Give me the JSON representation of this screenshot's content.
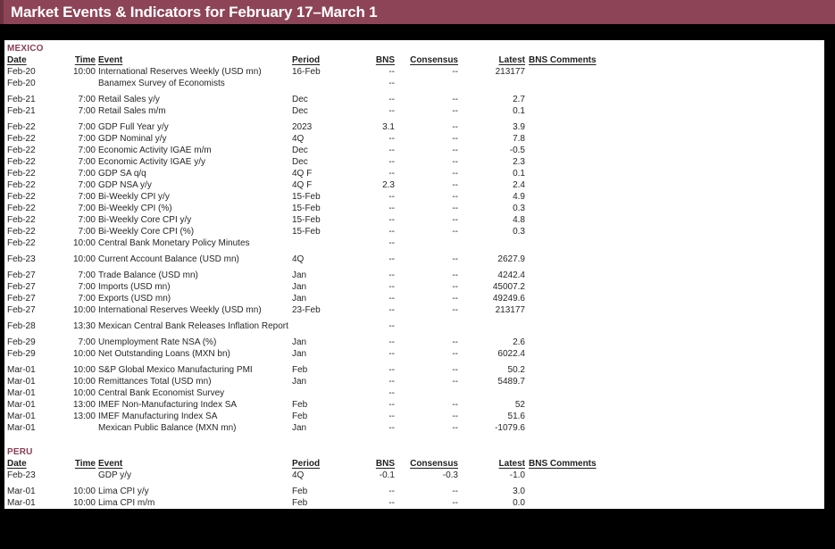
{
  "title": "Market Events & Indicators for February 17–March 1",
  "colors": {
    "title_bar_bg": "#8E4457",
    "title_bar_accent": "#6D3342",
    "section_label": "#8A3E54",
    "page_bg": "#000000",
    "table_bg": "#FFFFFF",
    "text": "#262626"
  },
  "columns": {
    "date": "Date",
    "time": "Time",
    "event": "Event",
    "period": "Period",
    "bns": "BNS",
    "consensus": "Consensus",
    "latest": "Latest",
    "comments": "BNS Comments"
  },
  "sections": [
    {
      "name": "MEXICO",
      "rows": [
        {
          "date": "Feb-20",
          "time": "10:00",
          "event": "International Reserves Weekly (USD mn)",
          "period": "16-Feb",
          "bns": "--",
          "consensus": "--",
          "latest": "213177",
          "comments": ""
        },
        {
          "date": "Feb-20",
          "time": "",
          "event": "Banamex Survey of Economists",
          "period": "",
          "bns": "--",
          "consensus": "",
          "latest": "",
          "comments": ""
        },
        {
          "date": "Feb-21",
          "time": "7:00",
          "event": "Retail Sales y/y",
          "period": "Dec",
          "bns": "--",
          "consensus": "--",
          "latest": "2.7",
          "comments": ""
        },
        {
          "date": "Feb-21",
          "time": "7:00",
          "event": "Retail Sales m/m",
          "period": "Dec",
          "bns": "--",
          "consensus": "--",
          "latest": "0.1",
          "comments": ""
        },
        {
          "date": "Feb-22",
          "time": "7:00",
          "event": "GDP Full Year y/y",
          "period": "2023",
          "bns": "3.1",
          "consensus": "--",
          "latest": "3.9",
          "comments": ""
        },
        {
          "date": "Feb-22",
          "time": "7:00",
          "event": "GDP Nominal y/y",
          "period": "4Q",
          "bns": "--",
          "consensus": "--",
          "latest": "7.8",
          "comments": ""
        },
        {
          "date": "Feb-22",
          "time": "7:00",
          "event": "Economic Activity IGAE m/m",
          "period": "Dec",
          "bns": "--",
          "consensus": "--",
          "latest": "-0.5",
          "comments": ""
        },
        {
          "date": "Feb-22",
          "time": "7:00",
          "event": "Economic Activity IGAE y/y",
          "period": "Dec",
          "bns": "--",
          "consensus": "--",
          "latest": "2.3",
          "comments": ""
        },
        {
          "date": "Feb-22",
          "time": "7:00",
          "event": "GDP SA q/q",
          "period": "4Q F",
          "bns": "--",
          "consensus": "--",
          "latest": "0.1",
          "comments": ""
        },
        {
          "date": "Feb-22",
          "time": "7:00",
          "event": "GDP NSA y/y",
          "period": "4Q F",
          "bns": "2.3",
          "consensus": "--",
          "latest": "2.4",
          "comments": ""
        },
        {
          "date": "Feb-22",
          "time": "7:00",
          "event": "Bi-Weekly CPI y/y",
          "period": "15-Feb",
          "bns": "--",
          "consensus": "--",
          "latest": "4.9",
          "comments": ""
        },
        {
          "date": "Feb-22",
          "time": "7:00",
          "event": "Bi-Weekly CPI (%)",
          "period": "15-Feb",
          "bns": "--",
          "consensus": "--",
          "latest": "0.3",
          "comments": ""
        },
        {
          "date": "Feb-22",
          "time": "7:00",
          "event": "Bi-Weekly Core CPI y/y",
          "period": "15-Feb",
          "bns": "--",
          "consensus": "--",
          "latest": "4.8",
          "comments": ""
        },
        {
          "date": "Feb-22",
          "time": "7:00",
          "event": "Bi-Weekly Core CPI (%)",
          "period": "15-Feb",
          "bns": "--",
          "consensus": "--",
          "latest": "0.3",
          "comments": ""
        },
        {
          "date": "Feb-22",
          "time": "10:00",
          "event": "Central Bank Monetary Policy Minutes",
          "period": "",
          "bns": "--",
          "consensus": "",
          "latest": "",
          "comments": ""
        },
        {
          "date": "Feb-23",
          "time": "10:00",
          "event": "Current Account Balance (USD mn)",
          "period": "4Q",
          "bns": "--",
          "consensus": "--",
          "latest": "2627.9",
          "comments": ""
        },
        {
          "date": "Feb-27",
          "time": "7:00",
          "event": "Trade Balance (USD mn)",
          "period": "Jan",
          "bns": "--",
          "consensus": "--",
          "latest": "4242.4",
          "comments": ""
        },
        {
          "date": "Feb-27",
          "time": "7:00",
          "event": "Imports (USD mn)",
          "period": "Jan",
          "bns": "--",
          "consensus": "--",
          "latest": "45007.2",
          "comments": ""
        },
        {
          "date": "Feb-27",
          "time": "7:00",
          "event": "Exports (USD mn)",
          "period": "Jan",
          "bns": "--",
          "consensus": "--",
          "latest": "49249.6",
          "comments": ""
        },
        {
          "date": "Feb-27",
          "time": "10:00",
          "event": "International Reserves Weekly (USD mn)",
          "period": "23-Feb",
          "bns": "--",
          "consensus": "--",
          "latest": "213177",
          "comments": ""
        },
        {
          "date": "Feb-28",
          "time": "13:30",
          "event": "Mexican Central Bank Releases Inflation Report",
          "period": "",
          "bns": "--",
          "consensus": "",
          "latest": "",
          "comments": ""
        },
        {
          "date": "Feb-29",
          "time": "7:00",
          "event": "Unemployment Rate NSA (%)",
          "period": "Jan",
          "bns": "--",
          "consensus": "--",
          "latest": "2.6",
          "comments": ""
        },
        {
          "date": "Feb-29",
          "time": "10:00",
          "event": "Net Outstanding Loans (MXN bn)",
          "period": "Jan",
          "bns": "--",
          "consensus": "--",
          "latest": "6022.4",
          "comments": ""
        },
        {
          "date": "Mar-01",
          "time": "10:00",
          "event": "S&P Global Mexico Manufacturing PMI",
          "period": "Feb",
          "bns": "--",
          "consensus": "--",
          "latest": "50.2",
          "comments": ""
        },
        {
          "date": "Mar-01",
          "time": "10:00",
          "event": "Remittances Total (USD mn)",
          "period": "Jan",
          "bns": "--",
          "consensus": "--",
          "latest": "5489.7",
          "comments": ""
        },
        {
          "date": "Mar-01",
          "time": "10:00",
          "event": "Central Bank Economist Survey",
          "period": "",
          "bns": "--",
          "consensus": "",
          "latest": "",
          "comments": ""
        },
        {
          "date": "Mar-01",
          "time": "13:00",
          "event": "IMEF Non-Manufacturing Index SA",
          "period": "Feb",
          "bns": "--",
          "consensus": "--",
          "latest": "52",
          "comments": ""
        },
        {
          "date": "Mar-01",
          "time": "13:00",
          "event": "IMEF Manufacturing Index SA",
          "period": "Feb",
          "bns": "--",
          "consensus": "--",
          "latest": "51.6",
          "comments": ""
        },
        {
          "date": "Mar-01",
          "time": "",
          "event": "Mexican Public Balance (MXN mn)",
          "period": "Jan",
          "bns": "--",
          "consensus": "--",
          "latest": "-1079.6",
          "comments": ""
        }
      ]
    },
    {
      "name": "PERU",
      "rows": [
        {
          "date": "Feb-23",
          "time": "",
          "event": "GDP y/y",
          "period": "4Q",
          "bns": "-0.1",
          "consensus": "-0.3",
          "latest": "-1.0",
          "comments": ""
        },
        {
          "date": "Mar-01",
          "time": "10:00",
          "event": "Lima CPI y/y",
          "period": "Feb",
          "bns": "--",
          "consensus": "--",
          "latest": "3.0",
          "comments": ""
        },
        {
          "date": "Mar-01",
          "time": "10:00",
          "event": "Lima CPI m/m",
          "period": "Feb",
          "bns": "--",
          "consensus": "--",
          "latest": "0.0",
          "comments": ""
        }
      ]
    }
  ]
}
